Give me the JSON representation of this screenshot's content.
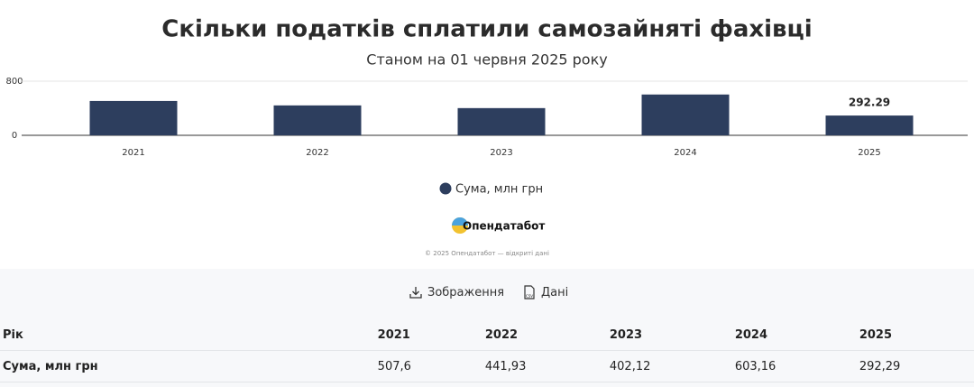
{
  "chart_data": {
    "type": "bar",
    "title": "Скільки податків сплатили самозайняті фахівці",
    "subtitle": "Станом на 01 червня 2025 року",
    "categories": [
      "2021",
      "2022",
      "2023",
      "2024",
      "2025"
    ],
    "series": [
      {
        "name": "Сума, млн грн",
        "color": "#2d3e5e",
        "values": [
          507.6,
          441.93,
          402.12,
          603.16,
          292.29
        ],
        "value_labels": [
          null,
          null,
          null,
          null,
          "292.29"
        ]
      }
    ],
    "ylim": [
      0,
      800
    ],
    "yticks": [
      0,
      800
    ],
    "grid": true
  },
  "logo": "Опендатабот",
  "copyright": "© 2025 Опендатабот — відкриті дані",
  "buttons": [
    "Зображення",
    "Дані"
  ],
  "table": {
    "header": [
      "Рік",
      "2021",
      "2022",
      "2023",
      "2024",
      "2025"
    ],
    "rows": [
      [
        "Сума, млн грн",
        "507,6",
        "441,93",
        "402,12",
        "603,16",
        "292,29"
      ]
    ]
  }
}
